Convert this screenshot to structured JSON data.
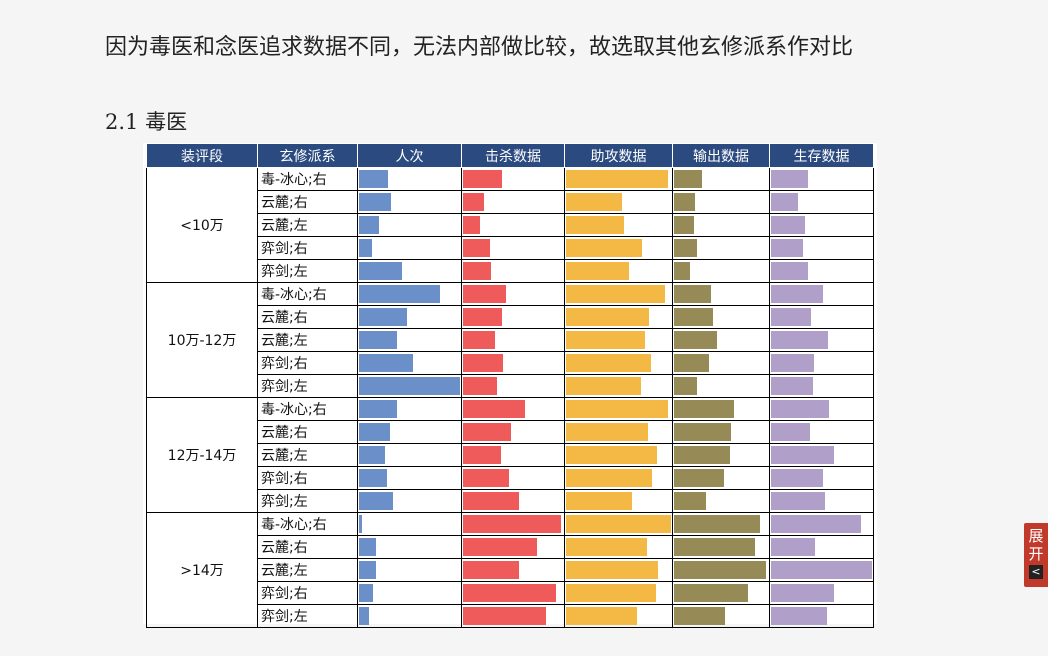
{
  "intro_text": "因为毒医和念医追求数据不同，无法内部做比较，故选取其他玄修派系作对比",
  "section_title": "2.1 毒医",
  "toggle": {
    "line1": "展",
    "line2": "开",
    "arrow": "<"
  },
  "table": {
    "headers": [
      "装评段",
      "玄修派系",
      "人次",
      "击杀数据",
      "助攻数据",
      "输出数据",
      "生存数据"
    ],
    "metric_colors": [
      "#6b8fc9",
      "#ef5b5b",
      "#f4b844",
      "#968b57",
      "#b0a0c9"
    ],
    "groups": [
      {
        "label": "<10万",
        "rows": [
          {
            "faction": "毒-冰心;右",
            "values": [
              0.29,
              0.39,
              0.97,
              0.3,
              0.37
            ]
          },
          {
            "faction": "云麓;右",
            "values": [
              0.32,
              0.21,
              0.53,
              0.22,
              0.27
            ]
          },
          {
            "faction": "云麓;左",
            "values": [
              0.2,
              0.17,
              0.55,
              0.21,
              0.34
            ]
          },
          {
            "faction": "弈剑;右",
            "values": [
              0.13,
              0.27,
              0.72,
              0.24,
              0.32
            ]
          },
          {
            "faction": "弈剑;左",
            "values": [
              0.43,
              0.28,
              0.6,
              0.17,
              0.37
            ]
          }
        ]
      },
      {
        "label": "10万-12万",
        "rows": [
          {
            "faction": "毒-冰心;右",
            "values": [
              0.8,
              0.43,
              0.94,
              0.39,
              0.51
            ]
          },
          {
            "faction": "云麓;右",
            "values": [
              0.48,
              0.39,
              0.79,
              0.42,
              0.4
            ]
          },
          {
            "faction": "云麓;左",
            "values": [
              0.38,
              0.32,
              0.75,
              0.46,
              0.56
            ]
          },
          {
            "faction": "弈剑;右",
            "values": [
              0.53,
              0.4,
              0.81,
              0.37,
              0.43
            ]
          },
          {
            "faction": "弈剑;左",
            "values": [
              1.0,
              0.34,
              0.71,
              0.24,
              0.42
            ]
          }
        ]
      },
      {
        "label": "12万-14万",
        "rows": [
          {
            "faction": "毒-冰心;右",
            "values": [
              0.38,
              0.62,
              0.97,
              0.64,
              0.57
            ]
          },
          {
            "faction": "云麓;右",
            "values": [
              0.31,
              0.48,
              0.78,
              0.61,
              0.39
            ]
          },
          {
            "faction": "云麓;左",
            "values": [
              0.26,
              0.38,
              0.87,
              0.6,
              0.62
            ]
          },
          {
            "faction": "弈剑;右",
            "values": [
              0.28,
              0.46,
              0.82,
              0.53,
              0.51
            ]
          },
          {
            "faction": "弈剑;左",
            "values": [
              0.34,
              0.56,
              0.63,
              0.34,
              0.53
            ]
          }
        ]
      },
      {
        "label": ">14万",
        "rows": [
          {
            "faction": "毒-冰心;右",
            "values": [
              0.03,
              0.98,
              1.0,
              0.91,
              0.89
            ]
          },
          {
            "faction": "云麓;右",
            "values": [
              0.17,
              0.74,
              0.77,
              0.86,
              0.44
            ]
          },
          {
            "faction": "云麓;左",
            "values": [
              0.17,
              0.56,
              0.88,
              0.98,
              1.0
            ]
          },
          {
            "faction": "弈剑;右",
            "values": [
              0.14,
              0.93,
              0.86,
              0.79,
              0.62
            ]
          },
          {
            "faction": "弈剑;左",
            "values": [
              0.1,
              0.83,
              0.68,
              0.54,
              0.55
            ]
          }
        ]
      }
    ]
  }
}
